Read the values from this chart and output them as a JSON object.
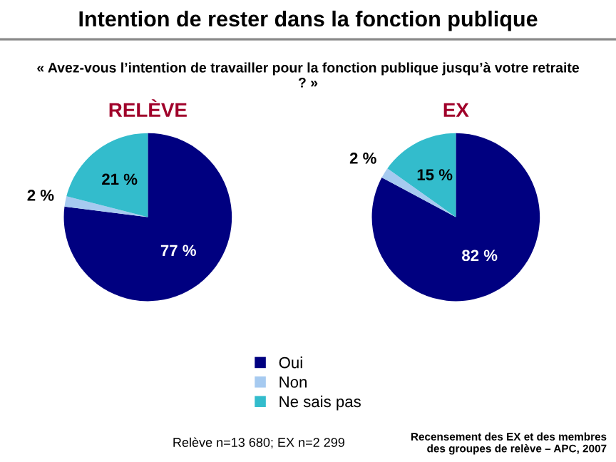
{
  "chart_data": [
    {
      "type": "pie",
      "title": "RELÈVE",
      "categories": [
        "Oui",
        "Non",
        "Ne sais pas"
      ],
      "values": [
        77,
        2,
        21
      ],
      "colors": [
        "#000080",
        "#a6caf0",
        "#33bccc"
      ],
      "value_labels": [
        "77 %",
        "2 %",
        "21 %"
      ],
      "legend": "bottom",
      "annotations": [
        "Intention de rester dans la fonction publique",
        "« Avez-vous l’intention de travailler pour la fonction publique jusqu’à votre retraite ? »",
        "Relève n=13 680; EX n=2 299",
        "Recensement des EX et des membres des groupes de relève – APC, 2007"
      ]
    },
    {
      "type": "pie",
      "title": "EX",
      "categories": [
        null,
        null,
        null
      ],
      "values": [
        82,
        2,
        15
      ],
      "colors": [
        "#000080",
        "#a6caf0",
        "#33bccc"
      ],
      "value_labels": [
        "82 %",
        "2 %",
        "15 %"
      ]
    }
  ]
}
